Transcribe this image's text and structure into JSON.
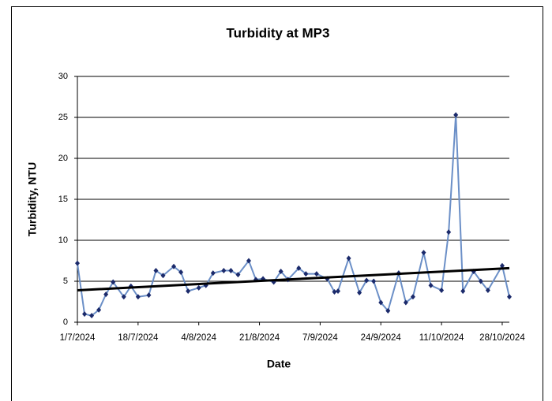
{
  "chart_data": {
    "type": "line",
    "title": "Turbidity at MP3",
    "x_label": "Date",
    "y_label": "Turbidity, NTU",
    "x": [
      "2024-07-01",
      "2024-07-03",
      "2024-07-05",
      "2024-07-07",
      "2024-07-09",
      "2024-07-11",
      "2024-07-14",
      "2024-07-16",
      "2024-07-18",
      "2024-07-21",
      "2024-07-23",
      "2024-07-25",
      "2024-07-28",
      "2024-07-30",
      "2024-08-01",
      "2024-08-04",
      "2024-08-06",
      "2024-08-08",
      "2024-08-11",
      "2024-08-13",
      "2024-08-15",
      "2024-08-18",
      "2024-08-20",
      "2024-08-22",
      "2024-08-25",
      "2024-08-27",
      "2024-08-29",
      "2024-09-01",
      "2024-09-03",
      "2024-09-06",
      "2024-09-09",
      "2024-09-11",
      "2024-09-12",
      "2024-09-15",
      "2024-09-18",
      "2024-09-20",
      "2024-09-22",
      "2024-09-24",
      "2024-09-26",
      "2024-09-29",
      "2024-10-01",
      "2024-10-03",
      "2024-10-06",
      "2024-10-08",
      "2024-10-11",
      "2024-10-13",
      "2024-10-15",
      "2024-10-17",
      "2024-10-20",
      "2024-10-22",
      "2024-10-24",
      "2024-10-28",
      "2024-10-30"
    ],
    "values": [
      7.2,
      1.0,
      0.8,
      1.5,
      3.4,
      4.9,
      3.1,
      4.4,
      3.1,
      3.3,
      6.3,
      5.7,
      6.8,
      6.1,
      3.8,
      4.2,
      4.5,
      6.0,
      6.3,
      6.3,
      5.8,
      7.5,
      5.2,
      5.3,
      4.9,
      6.2,
      5.2,
      6.6,
      5.9,
      5.9,
      5.3,
      3.7,
      3.8,
      7.8,
      3.6,
      5.1,
      5.0,
      2.4,
      1.4,
      6.0,
      2.4,
      3.1,
      8.5,
      4.5,
      3.9,
      11.0,
      25.3,
      3.8,
      6.2,
      5.0,
      3.9,
      6.9,
      3.1
    ],
    "color": "#6b8fc7",
    "marker_color": "#1b2a6b",
    "trendline": {
      "color": "#000000",
      "values": [
        3.9,
        6.6
      ]
    },
    "xlim": [
      "2024-07-01",
      "2024-10-30"
    ],
    "xticks": [
      {
        "value": "2024-07-01",
        "label": "1/7/2024"
      },
      {
        "value": "2024-07-18",
        "label": "18/7/2024"
      },
      {
        "value": "2024-08-04",
        "label": "4/8/2024"
      },
      {
        "value": "2024-08-21",
        "label": "21/8/2024"
      },
      {
        "value": "2024-09-07",
        "label": "7/9/2024"
      },
      {
        "value": "2024-09-24",
        "label": "24/9/2024"
      },
      {
        "value": "2024-10-11",
        "label": "11/10/2024"
      },
      {
        "value": "2024-10-28",
        "label": "28/10/2024"
      }
    ],
    "ylim": [
      0,
      30
    ],
    "yticks": [
      0,
      5,
      10,
      15,
      20,
      25,
      30
    ],
    "grid": true
  }
}
